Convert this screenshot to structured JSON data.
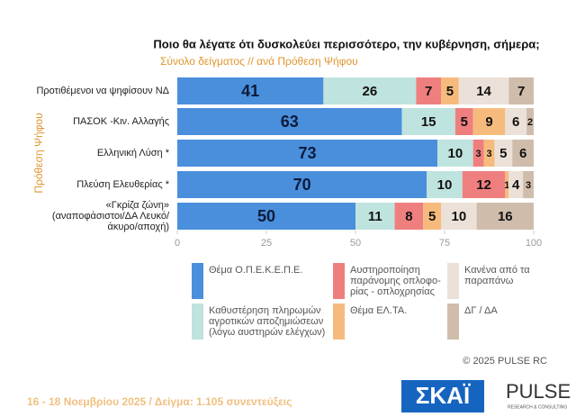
{
  "chart_data": {
    "type": "stacked-bar",
    "orientation": "horizontal",
    "title": "Ποιο θα λέγατε ότι δυσκολεύει περισσότερο, την κυβέρνηση, σήμερα;",
    "subtitle": "Σύνολο δείγματος // ανά Πρόθεση Ψήφου",
    "y_label": "Πρόθεση Ψήφου",
    "categories": [
      "Προτιθέμενοι να ψηφίσουν ΝΔ",
      "ΠΑΣΟΚ -Κιν. Αλλαγής",
      "Ελληνική Λύση *",
      "Πλεύση Ελευθερίας *",
      "«Γκρίζα ζώνη» (αναποφάσιστοι/ΔΑ Λευκό/άκυρο/αποχή)"
    ],
    "series": [
      {
        "name": "Θέμα Ο.Π.Ε.Κ.Ε.Π.Ε.",
        "color": "#4a8fdc",
        "values": [
          41,
          63,
          73,
          70,
          50
        ]
      },
      {
        "name": "Καθυστέρηση πληρωμών αγροτικών αποζημιώσεων (λόγω αυστηρών ελέγχων)",
        "color": "#bfe3de",
        "values": [
          26,
          15,
          10,
          10,
          11
        ]
      },
      {
        "name": "Αυστηροποίηση παράνομης οπλοφο- ρίας - οπλοχρησίας",
        "color": "#ef7f7f",
        "values": [
          7,
          5,
          3,
          12,
          8
        ]
      },
      {
        "name": "Θέμα ΕΛ.ΤΑ.",
        "color": "#f6bb7c",
        "values": [
          5,
          9,
          3,
          1,
          5
        ]
      },
      {
        "name": "Κανένα από τα παραπάνω",
        "color": "#ebe1d8",
        "values": [
          14,
          6,
          5,
          4,
          10
        ]
      },
      {
        "name": "ΔΓ / ΔΑ",
        "color": "#cfbcab",
        "values": [
          7,
          2,
          6,
          3,
          16
        ]
      }
    ],
    "xlim": [
      0,
      100
    ],
    "xticks": [
      0,
      25,
      50,
      75,
      100
    ],
    "source": "© 2025 PULSE RC",
    "footnote": "16 - 18 Νοεμβρίου 2025 / Δείγμα: 1.105 συνεντεύξεις",
    "logos": [
      "ΣΚΑΪ",
      "PULSE",
      "RESEARCH & CONSULTING"
    ]
  }
}
